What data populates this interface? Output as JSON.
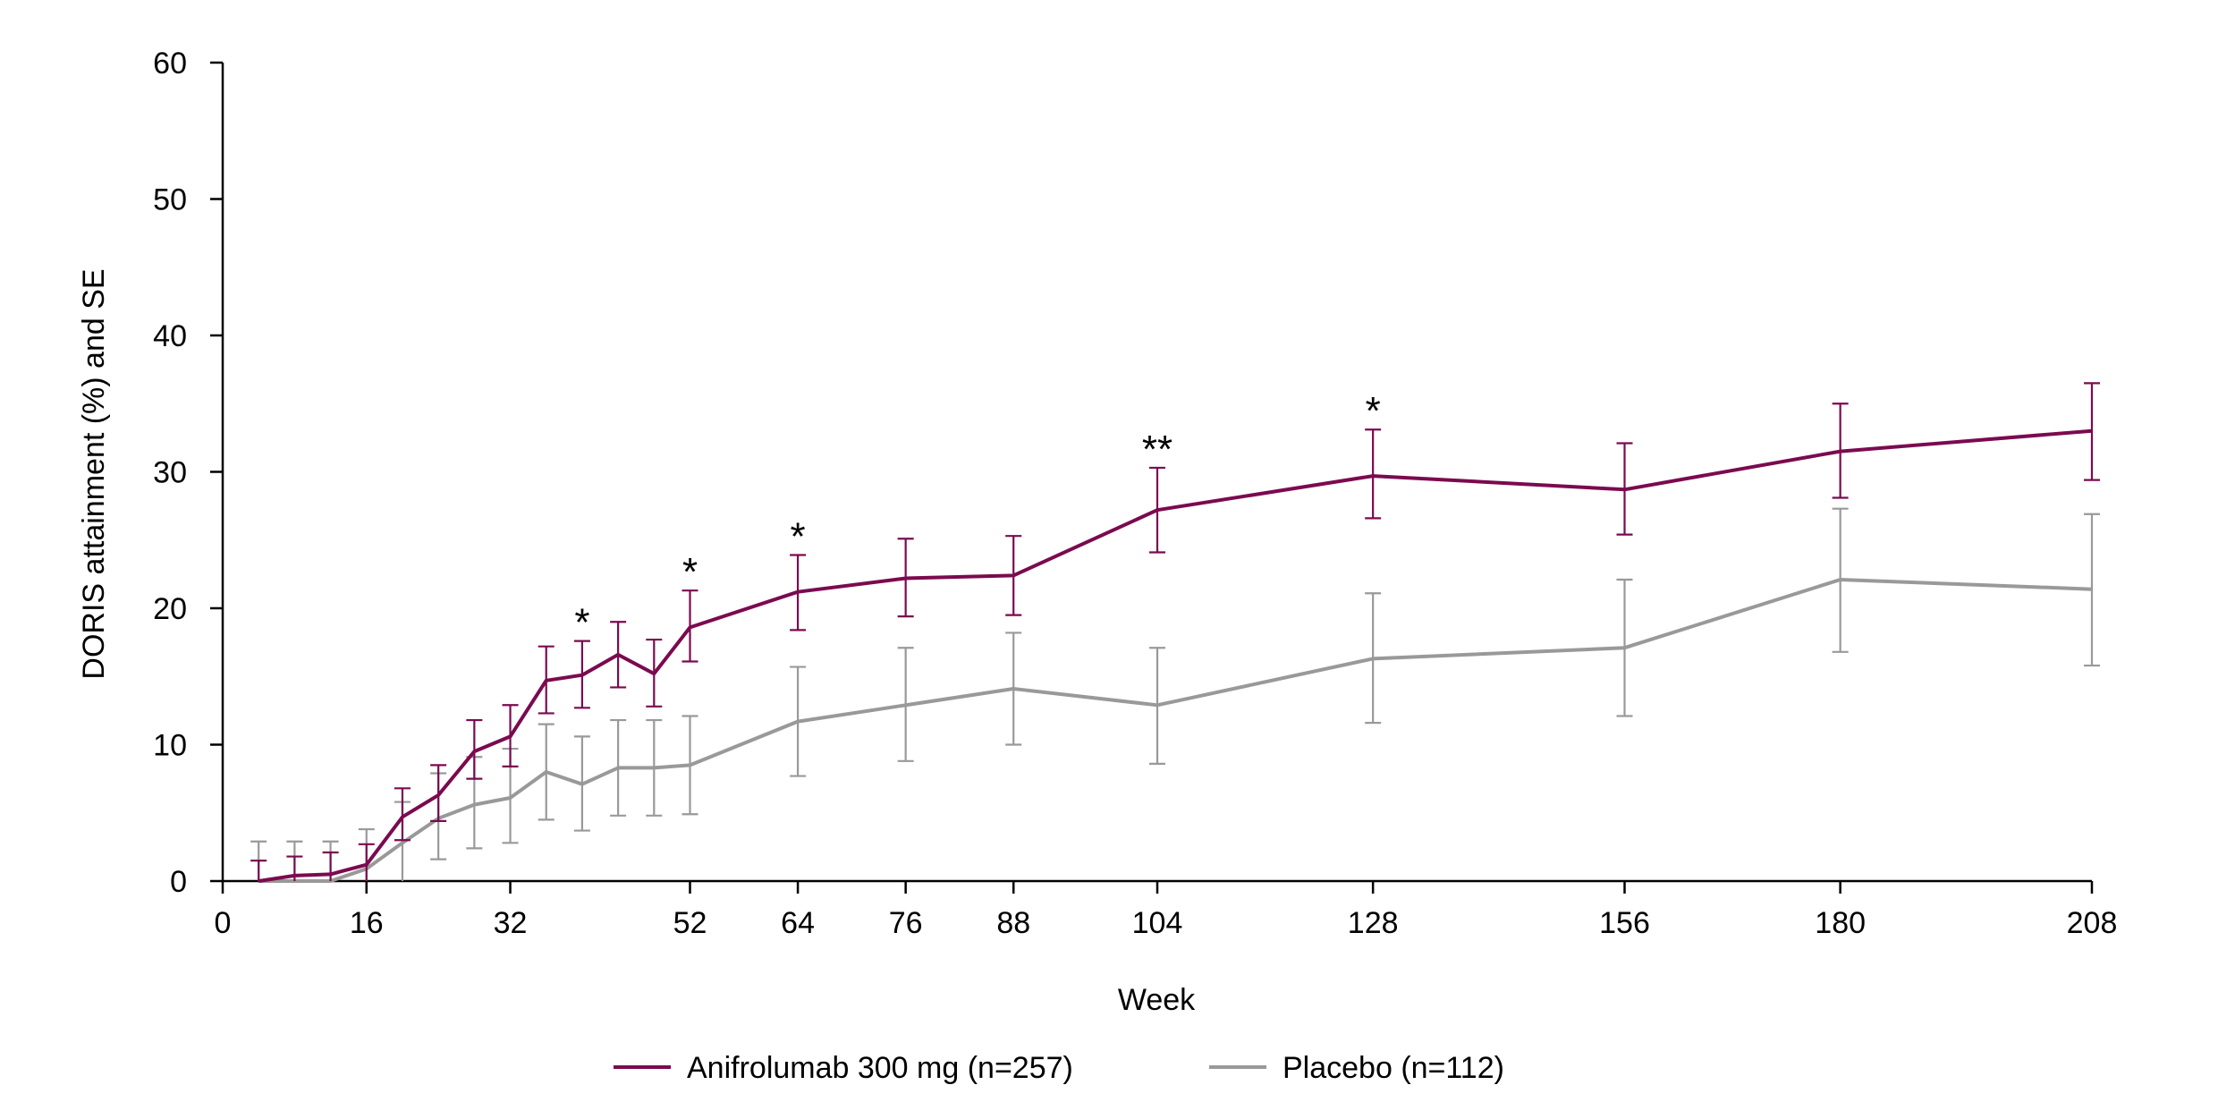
{
  "chart_data": {
    "type": "line",
    "xlabel": "Week",
    "ylabel": "DORIS attainment (%) and SE",
    "xlim": [
      0,
      208
    ],
    "ylim": [
      0,
      60
    ],
    "x_ticks": [
      0,
      16,
      32,
      52,
      64,
      76,
      88,
      104,
      128,
      156,
      180,
      208
    ],
    "y_ticks": [
      0,
      10,
      20,
      30,
      40,
      50,
      60
    ],
    "grid": false,
    "legend_position": "bottom",
    "series": [
      {
        "name": "Anifrolumab 300 mg (n=257)",
        "color": "#7b0a4f",
        "x": [
          4,
          8,
          12,
          16,
          20,
          24,
          28,
          32,
          36,
          40,
          44,
          48,
          52,
          64,
          76,
          88,
          104,
          128,
          156,
          180,
          208
        ],
        "y": [
          0,
          0.4,
          0.5,
          1.2,
          4.7,
          6.3,
          9.5,
          10.6,
          14.7,
          15.1,
          16.6,
          15.2,
          18.6,
          21.2,
          22.2,
          22.4,
          27.2,
          29.7,
          28.7,
          31.5,
          33.0
        ],
        "se_upper": [
          1.5,
          1.8,
          2.1,
          2.7,
          6.8,
          8.5,
          11.8,
          12.9,
          17.2,
          17.6,
          19.0,
          17.7,
          21.3,
          23.9,
          25.1,
          25.3,
          30.3,
          33.1,
          32.1,
          35.0,
          36.5
        ],
        "se_lower": [
          0,
          0,
          0,
          0,
          3.0,
          4.4,
          7.5,
          8.4,
          12.3,
          12.7,
          14.2,
          12.8,
          16.1,
          18.4,
          19.4,
          19.5,
          24.1,
          26.6,
          25.4,
          28.1,
          29.4
        ]
      },
      {
        "name": "Placebo (n=112)",
        "color": "#999999",
        "x": [
          4,
          8,
          12,
          16,
          20,
          24,
          28,
          32,
          36,
          40,
          44,
          48,
          52,
          64,
          76,
          88,
          104,
          128,
          156,
          180,
          208
        ],
        "y": [
          0,
          0,
          0,
          0.9,
          2.8,
          4.6,
          5.6,
          6.1,
          8.0,
          7.1,
          8.3,
          8.3,
          8.5,
          11.7,
          12.9,
          14.1,
          12.9,
          16.3,
          17.1,
          22.1,
          21.4
        ],
        "se_upper": [
          2.9,
          2.9,
          2.9,
          3.8,
          5.8,
          7.9,
          9.1,
          9.7,
          11.5,
          10.6,
          11.8,
          11.8,
          12.1,
          15.7,
          17.1,
          18.2,
          17.1,
          21.1,
          22.1,
          27.3,
          26.9
        ],
        "se_lower": [
          0,
          0,
          0,
          0,
          0,
          1.6,
          2.4,
          2.8,
          4.5,
          3.7,
          4.8,
          4.8,
          4.9,
          7.7,
          8.8,
          10.0,
          8.6,
          11.6,
          12.1,
          16.8,
          15.8
        ]
      }
    ],
    "annotations": [
      {
        "x": 40,
        "y": 17.6,
        "text": "*"
      },
      {
        "x": 52,
        "y": 21.3,
        "text": "*"
      },
      {
        "x": 64,
        "y": 23.9,
        "text": "*"
      },
      {
        "x": 104,
        "y": 30.3,
        "text": "**"
      },
      {
        "x": 128,
        "y": 33.1,
        "text": "*"
      }
    ]
  }
}
